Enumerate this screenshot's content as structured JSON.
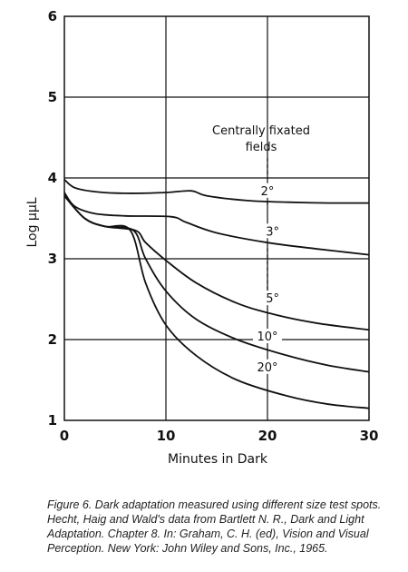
{
  "chart_data": {
    "type": "line",
    "xlabel": "Minutes in Dark",
    "ylabel": "Log µµL",
    "xlim": [
      0,
      30
    ],
    "ylim": [
      1,
      6
    ],
    "x_ticks": [
      "0",
      "10",
      "20",
      "30"
    ],
    "y_ticks": [
      "1",
      "2",
      "3",
      "4",
      "5",
      "6"
    ],
    "grid": true,
    "annotation": "Centrally fixated fields",
    "series": [
      {
        "name": "2°",
        "points": [
          [
            0,
            3.98
          ],
          [
            1,
            3.88
          ],
          [
            3,
            3.83
          ],
          [
            6,
            3.81
          ],
          [
            10,
            3.82
          ],
          [
            12.5,
            3.84
          ],
          [
            14,
            3.78
          ],
          [
            18,
            3.72
          ],
          [
            22,
            3.7
          ],
          [
            26,
            3.69
          ],
          [
            30,
            3.69
          ]
        ]
      },
      {
        "name": "3°",
        "points": [
          [
            0,
            3.82
          ],
          [
            1,
            3.65
          ],
          [
            3,
            3.56
          ],
          [
            6,
            3.53
          ],
          [
            10.5,
            3.52
          ],
          [
            12,
            3.45
          ],
          [
            15,
            3.32
          ],
          [
            20,
            3.2
          ],
          [
            25,
            3.12
          ],
          [
            30,
            3.05
          ]
        ]
      },
      {
        "name": "5°",
        "points": [
          [
            0,
            3.78
          ],
          [
            2,
            3.5
          ],
          [
            4,
            3.4
          ],
          [
            7,
            3.35
          ],
          [
            8,
            3.2
          ],
          [
            10,
            2.98
          ],
          [
            13,
            2.7
          ],
          [
            17,
            2.45
          ],
          [
            21,
            2.3
          ],
          [
            25,
            2.2
          ],
          [
            30,
            2.12
          ]
        ]
      },
      {
        "name": "10°",
        "points": [
          [
            0,
            3.78
          ],
          [
            2,
            3.5
          ],
          [
            4,
            3.4
          ],
          [
            6.8,
            3.35
          ],
          [
            8,
            3.0
          ],
          [
            10,
            2.6
          ],
          [
            13,
            2.25
          ],
          [
            17,
            2.0
          ],
          [
            22,
            1.8
          ],
          [
            26,
            1.68
          ],
          [
            30,
            1.6
          ]
        ]
      },
      {
        "name": "20°",
        "points": [
          [
            0,
            3.78
          ],
          [
            2,
            3.5
          ],
          [
            4,
            3.4
          ],
          [
            6.5,
            3.35
          ],
          [
            8,
            2.7
          ],
          [
            10,
            2.18
          ],
          [
            13,
            1.8
          ],
          [
            17,
            1.5
          ],
          [
            22,
            1.3
          ],
          [
            26,
            1.2
          ],
          [
            30,
            1.15
          ]
        ]
      }
    ]
  },
  "caption": "Figure 6. Dark adaptation measured using different size test spots. Hecht, Haig and Wald's data from Bartlett N. R., Dark and Light Adaptation. Chapter 8. In: Graham, C. H. (ed), Vision and Visual Perception. New York: John Wiley and Sons, Inc., 1965."
}
